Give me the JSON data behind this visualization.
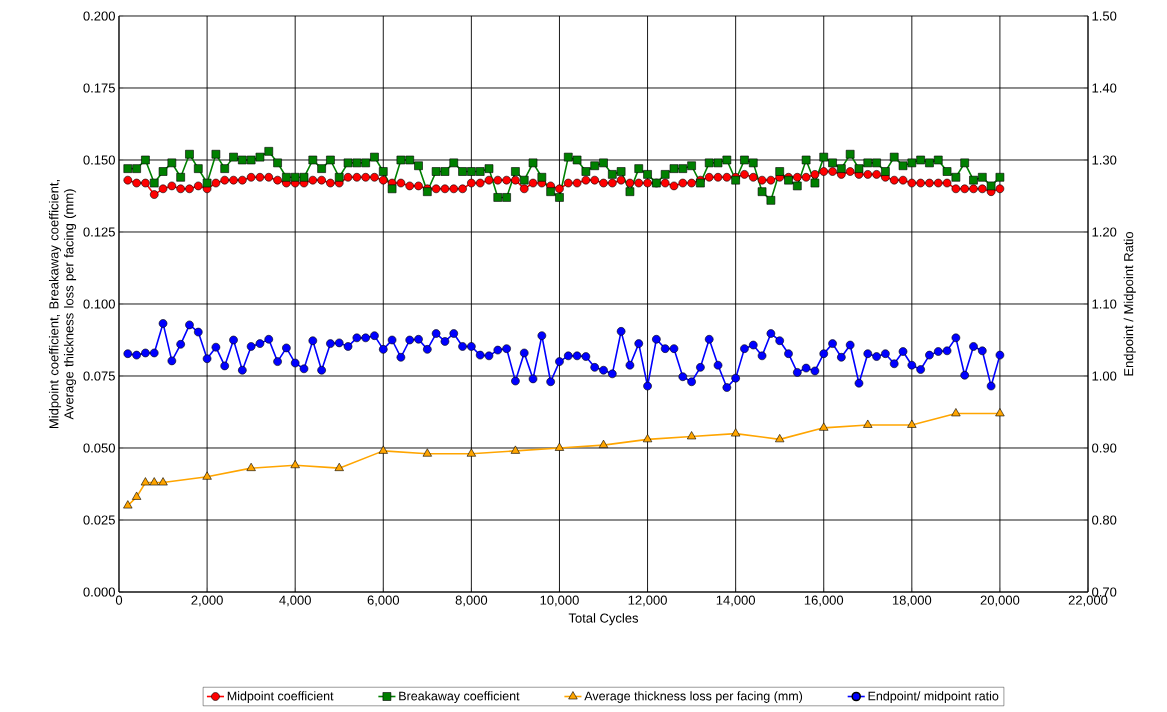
{
  "chart_data": {
    "type": "line",
    "xlabel": "Total Cycles",
    "ylabel": "Midpoint coefficient, Breakaway coefficient, Average thickness loss per facing (mm)",
    "y2label": "Endpoint / Midpoint Ratio",
    "x": [
      200,
      400,
      600,
      800,
      1000,
      1200,
      1400,
      1600,
      1800,
      2000,
      2200,
      2400,
      2600,
      2800,
      3000,
      3200,
      3400,
      3600,
      3800,
      4000,
      4200,
      4400,
      4600,
      4800,
      5000,
      5200,
      5400,
      5600,
      5800,
      6000,
      6200,
      6400,
      6600,
      6800,
      7000,
      7200,
      7400,
      7600,
      7800,
      8000,
      8200,
      8400,
      8600,
      8800,
      9000,
      9200,
      9400,
      9600,
      9800,
      10000,
      10200,
      10400,
      10600,
      10800,
      11000,
      11200,
      11400,
      11600,
      11800,
      12000,
      12200,
      12400,
      12600,
      12800,
      13000,
      13200,
      13400,
      13600,
      13800,
      14000,
      14200,
      14400,
      14600,
      14800,
      15000,
      15200,
      15400,
      15600,
      15800,
      16000,
      16200,
      16400,
      16600,
      16800,
      17000,
      17200,
      17400,
      17600,
      17800,
      18000,
      18200,
      18400,
      18600,
      18800,
      19000,
      19200,
      19400,
      19600,
      19800,
      20000
    ],
    "series": [
      {
        "name": "Midpoint coefficient",
        "color": "#ff0000",
        "marker": "circle",
        "values": [
          0.143,
          0.142,
          0.142,
          0.138,
          0.14,
          0.141,
          0.14,
          0.14,
          0.141,
          0.14,
          0.142,
          0.143,
          0.143,
          0.143,
          0.144,
          0.144,
          0.144,
          0.143,
          0.142,
          0.142,
          0.142,
          0.143,
          0.143,
          0.142,
          0.142,
          0.144,
          0.144,
          0.144,
          0.144,
          0.143,
          0.142,
          0.142,
          0.141,
          0.141,
          0.14,
          0.14,
          0.14,
          0.14,
          0.14,
          0.142,
          0.142,
          0.143,
          0.143,
          0.143,
          0.143,
          0.14,
          0.142,
          0.142,
          0.141,
          0.14,
          0.142,
          0.142,
          0.143,
          0.143,
          0.142,
          0.142,
          0.143,
          0.142,
          0.142,
          0.142,
          0.142,
          0.142,
          0.141,
          0.142,
          0.142,
          0.143,
          0.144,
          0.144,
          0.144,
          0.144,
          0.145,
          0.144,
          0.143,
          0.143,
          0.144,
          0.144,
          0.144,
          0.144,
          0.145,
          0.146,
          0.146,
          0.145,
          0.146,
          0.145,
          0.145,
          0.145,
          0.144,
          0.143,
          0.143,
          0.142,
          0.142,
          0.142,
          0.142,
          0.142,
          0.14,
          0.14,
          0.14,
          0.14,
          0.139,
          0.14
        ]
      },
      {
        "name": "Breakaway coefficient",
        "color": "#008000",
        "marker": "square",
        "values": [
          0.147,
          0.147,
          0.15,
          0.142,
          0.146,
          0.149,
          0.144,
          0.152,
          0.147,
          0.142,
          0.152,
          0.147,
          0.151,
          0.15,
          0.15,
          0.151,
          0.153,
          0.149,
          0.144,
          0.144,
          0.144,
          0.15,
          0.147,
          0.15,
          0.144,
          0.149,
          0.149,
          0.149,
          0.151,
          0.146,
          0.14,
          0.15,
          0.15,
          0.148,
          0.139,
          0.146,
          0.146,
          0.149,
          0.146,
          0.146,
          0.146,
          0.147,
          0.137,
          0.137,
          0.146,
          0.143,
          0.149,
          0.144,
          0.139,
          0.137,
          0.151,
          0.15,
          0.146,
          0.148,
          0.149,
          0.145,
          0.146,
          0.139,
          0.147,
          0.145,
          0.142,
          0.145,
          0.147,
          0.147,
          0.148,
          0.142,
          0.149,
          0.149,
          0.15,
          0.143,
          0.15,
          0.149,
          0.139,
          0.136,
          0.146,
          0.143,
          0.141,
          0.15,
          0.142,
          0.151,
          0.149,
          0.147,
          0.152,
          0.147,
          0.149,
          0.149,
          0.146,
          0.151,
          0.148,
          0.149,
          0.15,
          0.149,
          0.15,
          0.146,
          0.144,
          0.149,
          0.143,
          0.144,
          0.141,
          0.144
        ]
      },
      {
        "name": "Average thickness loss per facing (mm)",
        "color": "#ffa500",
        "marker": "triangle",
        "x": [
          200,
          400,
          600,
          800,
          1000,
          2000,
          3000,
          4000,
          5000,
          6000,
          7000,
          8000,
          9000,
          10000,
          11000,
          12000,
          13000,
          14000,
          15000,
          16000,
          17000,
          18000,
          19000,
          20000
        ],
        "values": [
          0.03,
          0.033,
          0.038,
          0.038,
          0.038,
          0.04,
          0.043,
          0.044,
          0.043,
          0.049,
          0.048,
          0.048,
          0.049,
          0.05,
          0.051,
          0.053,
          0.054,
          0.055,
          0.053,
          0.057,
          0.058,
          0.058,
          0.062,
          0.062
        ]
      },
      {
        "name": "Endpoint/ midpoint ratio",
        "color": "#0000ff",
        "marker": "circle",
        "axis": "y2",
        "values": [
          1.031,
          1.029,
          1.032,
          1.032,
          1.073,
          1.021,
          1.044,
          1.071,
          1.061,
          1.024,
          1.04,
          1.014,
          1.05,
          1.008,
          1.041,
          1.045,
          1.051,
          1.02,
          1.039,
          1.018,
          1.01,
          1.049,
          1.008,
          1.045,
          1.046,
          1.041,
          1.053,
          1.053,
          1.056,
          1.037,
          1.05,
          1.026,
          1.05,
          1.051,
          1.037,
          1.059,
          1.048,
          1.059,
          1.041,
          1.041,
          1.029,
          1.028,
          1.036,
          1.038,
          0.993,
          1.032,
          0.996,
          1.056,
          0.992,
          1.02,
          1.028,
          1.028,
          1.027,
          1.012,
          1.008,
          1.003,
          1.062,
          1.015,
          1.045,
          0.986,
          1.051,
          1.038,
          1.038,
          0.999,
          0.992,
          1.012,
          1.051,
          1.015,
          0.984,
          0.997,
          1.038,
          1.043,
          1.028,
          1.059,
          1.049,
          1.031,
          1.005,
          1.011,
          1.007,
          1.031,
          1.045,
          1.026,
          1.043,
          0.99,
          1.031,
          1.027,
          1.031,
          1.017,
          1.034,
          1.015,
          1.009,
          1.029,
          1.034,
          1.035,
          1.053,
          1.001,
          1.041,
          1.035,
          0.986,
          1.029
        ]
      }
    ],
    "xlim": [
      0,
      22000
    ],
    "xticks": [
      0,
      {
        "value": 2000,
        "label": "2,000"
      },
      {
        "value": 4000,
        "label": "4,000"
      },
      {
        "value": 6000,
        "label": "6,000"
      },
      {
        "value": 8000,
        "label": "8,000"
      },
      {
        "value": 10000,
        "label": "10,000"
      },
      {
        "value": 12000,
        "label": "12,000"
      },
      {
        "value": 14000,
        "label": "14,000"
      },
      {
        "value": 16000,
        "label": "16,000"
      },
      {
        "value": 18000,
        "label": "18,000"
      },
      {
        "value": 20000,
        "label": "20,000"
      },
      {
        "value": 22000,
        "label": "22,000"
      }
    ],
    "ylim": [
      0,
      0.2
    ],
    "yticks": [
      {
        "value": 0,
        "label": "0.000"
      },
      0.025,
      {
        "value": 0.05,
        "label": "0.050"
      },
      0.075,
      {
        "value": 0.1,
        "label": "0.100"
      },
      0.125,
      {
        "value": 0.15,
        "label": "0.150"
      },
      0.175,
      {
        "value": 0.2,
        "label": "0.200"
      }
    ],
    "y2lim": [
      0.7,
      1.5
    ],
    "y2ticks": [
      {
        "value": 0.7,
        "label": "0.70"
      },
      {
        "value": 0.8,
        "label": "0.80"
      },
      {
        "value": 0.9,
        "label": "0.90"
      },
      {
        "value": 1.0,
        "label": "1.00"
      },
      {
        "value": 1.1,
        "label": "1.10"
      },
      {
        "value": 1.2,
        "label": "1.20"
      },
      {
        "value": 1.3,
        "label": "1.30"
      },
      {
        "value": 1.4,
        "label": "1.40"
      },
      {
        "value": 1.5,
        "label": "1.50"
      }
    ],
    "grid": true,
    "legend": "bottom",
    "line_style": "solid"
  }
}
